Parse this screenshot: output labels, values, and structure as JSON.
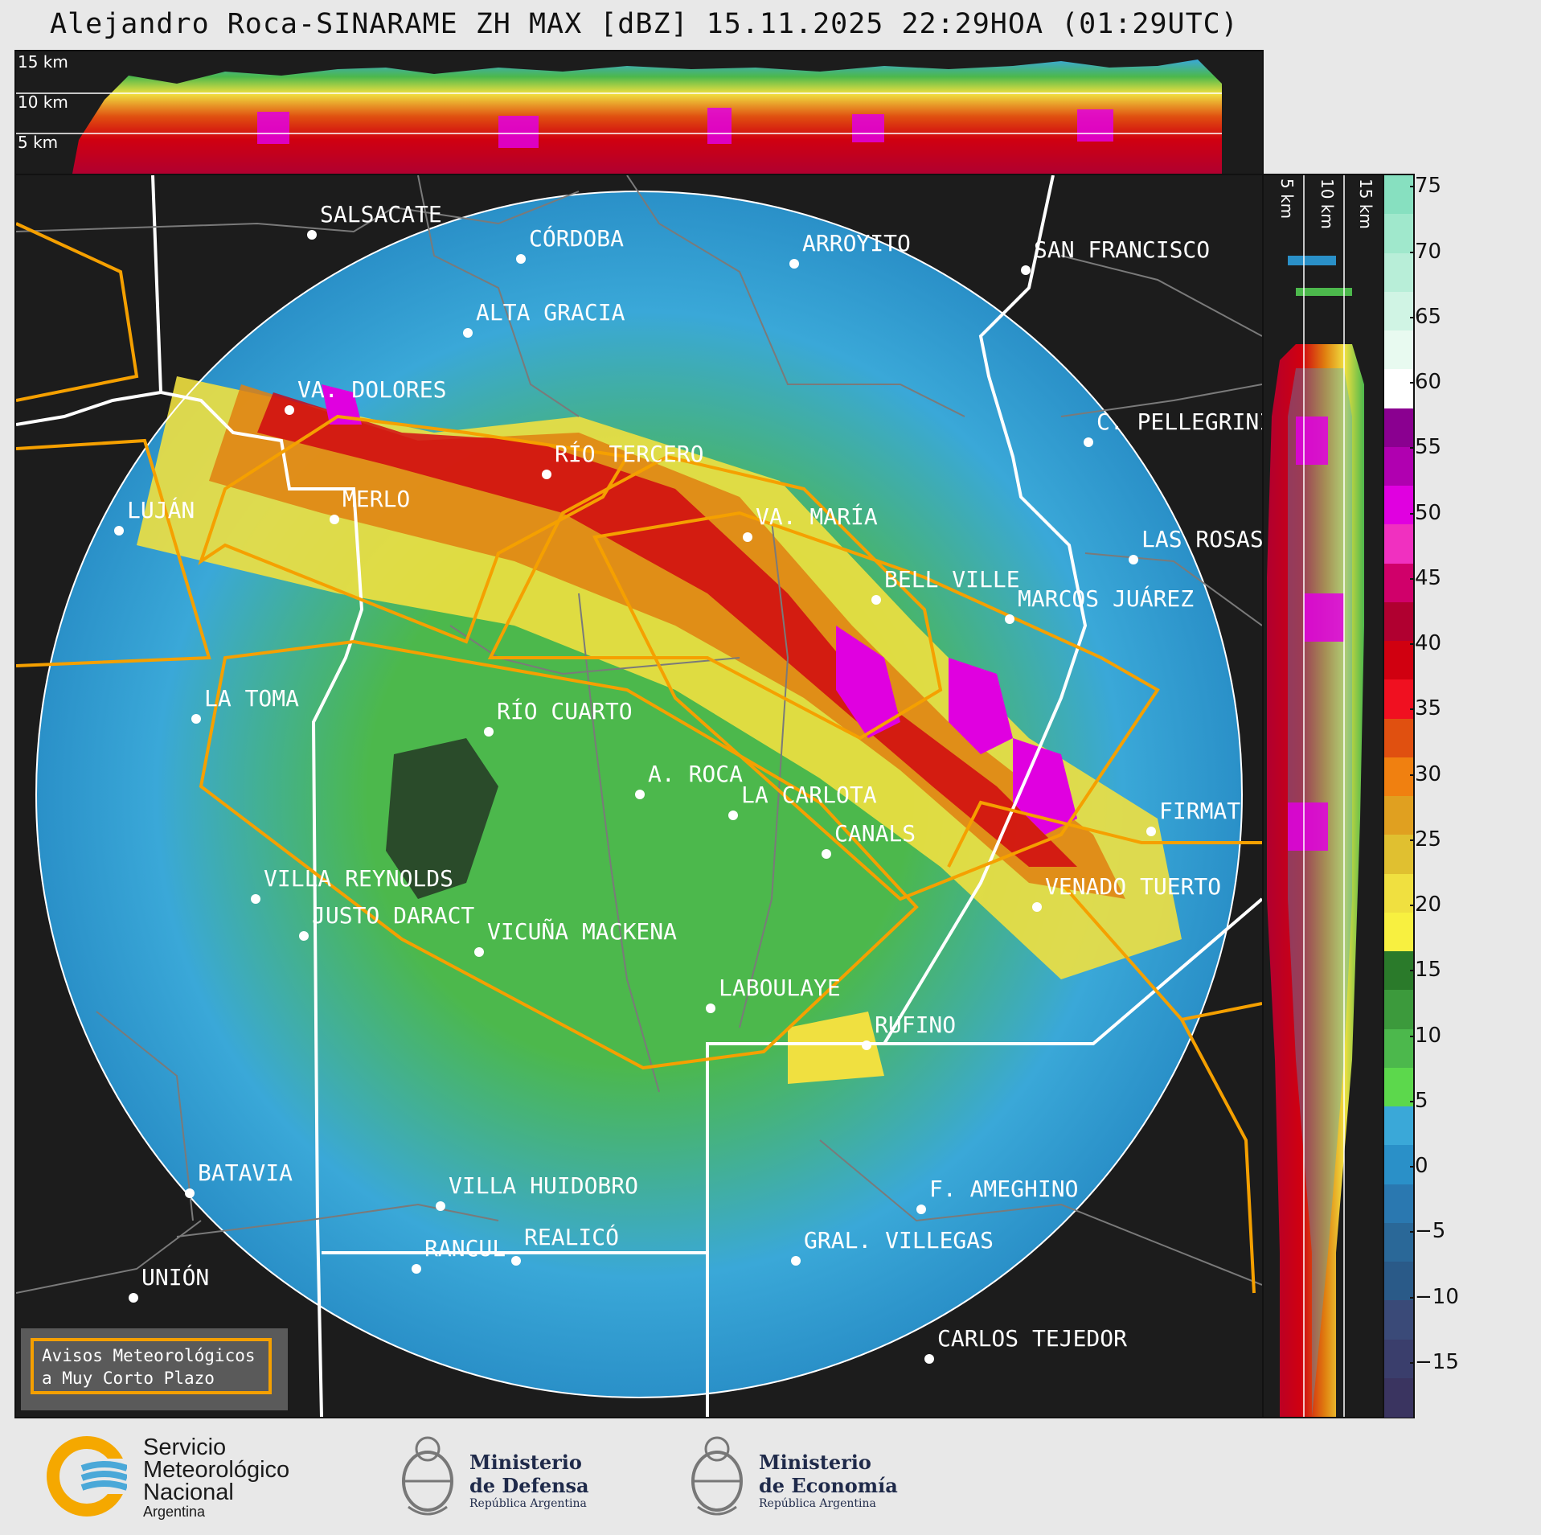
{
  "title": "Alejandro Roca-SINARAME ZH MAX [dBZ] 15.11.2025 22:29HOA (01:29UTC)",
  "top_panel": {
    "km_labels": [
      "15 km",
      "10 km",
      "5 km"
    ]
  },
  "side_panel": {
    "km_labels": [
      "5 km",
      "10 km",
      "15 km"
    ]
  },
  "colorbar": {
    "ticks": [
      "75",
      "70",
      "65",
      "60",
      "55",
      "50",
      "45",
      "40",
      "35",
      "30",
      "25",
      "20",
      "15",
      "10",
      "5",
      "0",
      "−5",
      "−10",
      "−15"
    ],
    "colors": [
      "#87e0c0",
      "#a0e8cc",
      "#b8eed8",
      "#d0f4e4",
      "#e8faf0",
      "#ffffff",
      "#8a0090",
      "#b000b0",
      "#e000e0",
      "#f030c0",
      "#d0006a",
      "#b00030",
      "#d00010",
      "#f01020",
      "#e05010",
      "#f08010",
      "#e0a020",
      "#e0c030",
      "#f0e040",
      "#f8f040",
      "#2a7a2a",
      "#3c9a3c",
      "#4cb84c",
      "#5cd84c",
      "#3aa8d8",
      "#2a90c8",
      "#2a78b0",
      "#2a6898",
      "#2a5a88",
      "#3a4a78",
      "#3a3e6c",
      "#3a3460"
    ],
    "levels": [
      -19,
      76
    ]
  },
  "cities": [
    {
      "name": "SALSACATE"
    },
    {
      "name": "CÓRDOBA"
    },
    {
      "name": "ARROYITO"
    },
    {
      "name": "SAN FRANCISCO"
    },
    {
      "name": "ALTA GRACIA"
    },
    {
      "name": "VA. DOLORES"
    },
    {
      "name": "C. PELLEGRINI"
    },
    {
      "name": "RÍO TERCERO"
    },
    {
      "name": "LUJÁN"
    },
    {
      "name": "MERLO"
    },
    {
      "name": "VA. MARÍA"
    },
    {
      "name": "LAS ROSAS"
    },
    {
      "name": "BELL VILLE"
    },
    {
      "name": "MARCOS JUÁREZ"
    },
    {
      "name": "LA TOMA"
    },
    {
      "name": "RÍO CUARTO"
    },
    {
      "name": "A. ROCA"
    },
    {
      "name": "LA CARLOTA"
    },
    {
      "name": "FIRMAT"
    },
    {
      "name": "CANALS"
    },
    {
      "name": "VILLA REYNOLDS"
    },
    {
      "name": "VENADO TUERTO"
    },
    {
      "name": "JUSTO DARACT"
    },
    {
      "name": "VICUÑA MACKENA"
    },
    {
      "name": "LABOULAYE"
    },
    {
      "name": "RUFINO"
    },
    {
      "name": "BATAVIA"
    },
    {
      "name": "VILLA HUIDOBRO"
    },
    {
      "name": "F. AMEGHINO"
    },
    {
      "name": "RANCUL"
    },
    {
      "name": "REALICÓ"
    },
    {
      "name": "GRAL. VILLEGAS"
    },
    {
      "name": "UNIÓN"
    },
    {
      "name": "CARLOS TEJEDOR"
    }
  ],
  "legend": {
    "line1": "Avisos Meteorológicos",
    "line2": "a Muy Corto Plazo"
  },
  "logos": {
    "smn": {
      "line1": "Servicio",
      "line2": "Meteorológico",
      "line3": "Nacional",
      "line4": "Argentina"
    },
    "defensa": {
      "line1": "Ministerio",
      "line2": "de Defensa",
      "line3": "República Argentina"
    },
    "economia": {
      "line1": "Ministerio",
      "line2": "de Economía",
      "line3": "República Argentina"
    }
  }
}
